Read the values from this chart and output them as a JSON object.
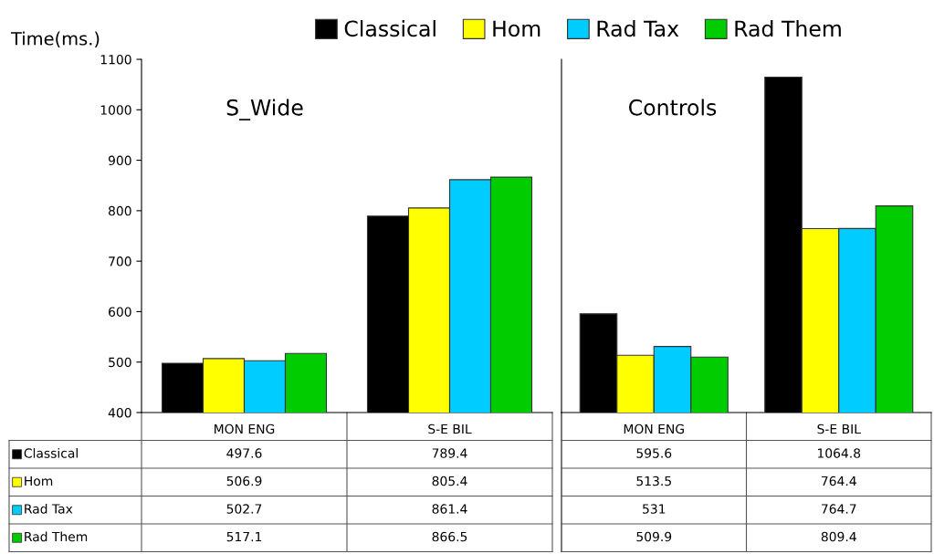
{
  "chart_data": [
    {
      "type": "bar",
      "title": "S_Wide",
      "ylabel": "Time(ms.)",
      "categories": [
        "MON ENG",
        "S-E BIL"
      ],
      "series": [
        {
          "name": "Classical",
          "color": "#000000",
          "values": [
            497.6,
            789.4
          ]
        },
        {
          "name": "Hom",
          "color": "#ffff00",
          "values": [
            506.9,
            805.4
          ]
        },
        {
          "name": "Rad Tax",
          "color": "#00ccff",
          "values": [
            502.7,
            861.4
          ]
        },
        {
          "name": "Rad Them",
          "color": "#00cc00",
          "values": [
            517.1,
            866.5
          ]
        }
      ],
      "ylim": [
        400,
        1100
      ],
      "yticks": [
        400,
        500,
        600,
        700,
        800,
        900,
        1000,
        1100
      ],
      "data_labels": true,
      "legend": "bottom left",
      "grid": false
    },
    {
      "type": "bar",
      "title": "Controls",
      "categories": [
        "MON ENG",
        "S-E BIL"
      ],
      "series": [
        {
          "name": "Classical",
          "color": "#000000",
          "values": [
            595.6,
            1064.8
          ]
        },
        {
          "name": "Hom",
          "color": "#ffff00",
          "values": [
            513.5,
            764.4
          ]
        },
        {
          "name": "Rad Tax",
          "color": "#00ccff",
          "values": [
            531,
            764.7
          ]
        },
        {
          "name": "Rad Them",
          "color": "#00cc00",
          "values": [
            509.9,
            809.4
          ]
        }
      ],
      "ylim": [
        400,
        1100
      ],
      "yticks": [
        400,
        500,
        600,
        700,
        800,
        900,
        1000,
        1100
      ],
      "data_labels": true,
      "tick_labels": "x",
      "legend": "top",
      "grid": false
    }
  ]
}
